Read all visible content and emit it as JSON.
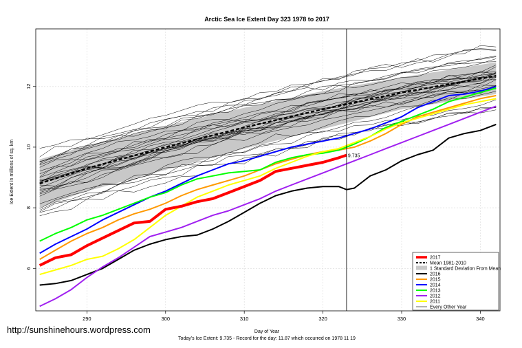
{
  "watermark": "http://sunshinehours.wordpress.com",
  "chart_data": {
    "type": "line",
    "title": "Arctic Sea Ice Extent Day 323 1978 to 2017",
    "xlabel": "Day of Year",
    "ylabel": "Ice Extent in millions of sq. km",
    "footer": "Today's Ice Extent: 9.735  - Record for the day: 11.87 which occurred on 1978 11 19",
    "xlim": [
      283.5,
      342.5
    ],
    "ylim": [
      4.6,
      13.9
    ],
    "x_ticks": [
      290,
      300,
      310,
      320,
      330,
      340
    ],
    "y_ticks": [
      6,
      8,
      10,
      12
    ],
    "grid": true,
    "current_day": 323,
    "current_value_label": "9.735",
    "current_value": 9.735,
    "legend_position": "bottom-right",
    "legend": [
      {
        "label": "2017",
        "color": "#ff0000",
        "style": "thick"
      },
      {
        "label": "Mean 1981-2010",
        "color": "#000000",
        "style": "dashed"
      },
      {
        "label": "1 Standard Deviation From Mean",
        "color": "#c8c8c8",
        "style": "band"
      },
      {
        "label": "2016",
        "color": "#000000",
        "style": "solid"
      },
      {
        "label": "2015",
        "color": "#ff9900",
        "style": "solid"
      },
      {
        "label": "2014",
        "color": "#0000ff",
        "style": "solid"
      },
      {
        "label": "2013",
        "color": "#00ff00",
        "style": "solid"
      },
      {
        "label": "2012",
        "color": "#a020f0",
        "style": "solid"
      },
      {
        "label": "2011",
        "color": "#ffff00",
        "style": "solid"
      },
      {
        "label": "Every Other Year",
        "color": "#000000",
        "style": "thin"
      }
    ],
    "mean": {
      "x": [
        284,
        290,
        300,
        310,
        320,
        330,
        342
      ],
      "y": [
        8.8,
        9.3,
        10.0,
        10.65,
        11.25,
        11.8,
        12.35
      ]
    },
    "std_band": {
      "x": [
        284,
        290,
        300,
        310,
        320,
        330,
        342
      ],
      "upper": [
        9.6,
        10.05,
        10.7,
        11.3,
        11.85,
        12.3,
        12.8
      ],
      "lower": [
        8.0,
        8.55,
        9.25,
        9.95,
        10.6,
        11.25,
        11.75
      ]
    },
    "series": [
      {
        "name": "2017",
        "color": "#ff0000",
        "width": 4,
        "x": [
          284,
          286,
          288,
          290,
          292,
          294,
          296,
          298,
          300,
          302,
          304,
          306,
          308,
          310,
          312,
          314,
          316,
          318,
          320,
          322,
          323
        ],
        "y": [
          6.1,
          6.35,
          6.45,
          6.75,
          7.0,
          7.25,
          7.5,
          7.55,
          7.95,
          8.05,
          8.2,
          8.3,
          8.5,
          8.7,
          8.9,
          9.2,
          9.3,
          9.4,
          9.5,
          9.65,
          9.735
        ]
      },
      {
        "name": "2016",
        "color": "#000000",
        "width": 2,
        "x": [
          284,
          286,
          288,
          290,
          292,
          294,
          296,
          298,
          300,
          302,
          304,
          306,
          308,
          310,
          312,
          314,
          316,
          318,
          320,
          322,
          323,
          324,
          326,
          328,
          330,
          332,
          334,
          336,
          338,
          340,
          342
        ],
        "y": [
          5.45,
          5.5,
          5.6,
          5.8,
          6.0,
          6.3,
          6.6,
          6.8,
          6.95,
          7.05,
          7.1,
          7.3,
          7.55,
          7.85,
          8.15,
          8.4,
          8.55,
          8.65,
          8.7,
          8.7,
          8.6,
          8.65,
          9.05,
          9.25,
          9.55,
          9.75,
          9.9,
          10.3,
          10.45,
          10.55,
          10.75
        ]
      },
      {
        "name": "2015",
        "color": "#ff9900",
        "width": 2,
        "x": [
          284,
          286,
          288,
          290,
          292,
          294,
          296,
          298,
          300,
          302,
          304,
          306,
          308,
          310,
          312,
          314,
          316,
          318,
          320,
          322,
          324,
          326,
          328,
          330,
          332,
          334,
          336,
          338,
          340,
          342
        ],
        "y": [
          6.3,
          6.6,
          6.9,
          7.15,
          7.35,
          7.6,
          7.8,
          7.95,
          8.15,
          8.4,
          8.6,
          8.75,
          8.9,
          9.05,
          9.25,
          9.45,
          9.6,
          9.75,
          9.85,
          9.9,
          10.0,
          10.2,
          10.45,
          10.75,
          11.0,
          11.15,
          11.3,
          11.45,
          11.6,
          11.7
        ]
      },
      {
        "name": "2014",
        "color": "#0000ff",
        "width": 2,
        "x": [
          284,
          286,
          288,
          290,
          292,
          294,
          296,
          298,
          300,
          302,
          304,
          306,
          308,
          310,
          312,
          314,
          316,
          318,
          320,
          322,
          324,
          326,
          328,
          330,
          332,
          334,
          336,
          338,
          340,
          342
        ],
        "y": [
          6.5,
          6.8,
          7.05,
          7.3,
          7.6,
          7.85,
          8.1,
          8.35,
          8.55,
          8.8,
          9.05,
          9.25,
          9.45,
          9.55,
          9.7,
          9.85,
          10.0,
          10.1,
          10.2,
          10.3,
          10.45,
          10.6,
          10.8,
          11.0,
          11.3,
          11.5,
          11.7,
          11.75,
          11.85,
          12.0
        ]
      },
      {
        "name": "2013",
        "color": "#00ff00",
        "width": 2,
        "x": [
          284,
          286,
          288,
          290,
          292,
          294,
          296,
          298,
          300,
          302,
          304,
          306,
          308,
          310,
          312,
          314,
          316,
          318,
          320,
          322,
          324,
          326,
          328,
          330,
          332,
          334,
          336,
          338,
          340,
          342
        ],
        "y": [
          6.9,
          7.15,
          7.35,
          7.6,
          7.75,
          7.95,
          8.15,
          8.35,
          8.5,
          8.75,
          8.95,
          9.05,
          9.15,
          9.2,
          9.25,
          9.5,
          9.65,
          9.75,
          9.8,
          9.9,
          10.1,
          10.35,
          10.65,
          10.85,
          11.05,
          11.25,
          11.5,
          11.65,
          11.8,
          11.95
        ]
      },
      {
        "name": "2012",
        "color": "#a020f0",
        "width": 2,
        "x": [
          284,
          286,
          288,
          290,
          292,
          294,
          296,
          298,
          300,
          302,
          304,
          306,
          308,
          310,
          312,
          314,
          316,
          318,
          320,
          322,
          324,
          326,
          328,
          330,
          332,
          334,
          336,
          338,
          340,
          342
        ],
        "y": [
          4.75,
          5.0,
          5.3,
          5.7,
          6.05,
          6.35,
          6.7,
          7.05,
          7.2,
          7.35,
          7.55,
          7.75,
          7.9,
          8.1,
          8.3,
          8.55,
          8.75,
          8.95,
          9.15,
          9.35,
          9.55,
          9.75,
          9.95,
          10.15,
          10.35,
          10.55,
          10.75,
          10.95,
          11.15,
          11.35
        ]
      },
      {
        "name": "2011",
        "color": "#ffff00",
        "width": 2,
        "x": [
          284,
          286,
          288,
          290,
          292,
          294,
          296,
          298,
          300,
          302,
          304,
          306,
          308,
          310,
          312,
          314,
          316,
          318,
          320,
          322,
          324,
          326,
          328,
          330,
          332,
          334,
          336,
          338,
          340,
          342
        ],
        "y": [
          5.8,
          5.95,
          6.1,
          6.3,
          6.4,
          6.65,
          6.95,
          7.35,
          7.75,
          8.05,
          8.35,
          8.55,
          8.75,
          8.9,
          9.05,
          9.3,
          9.5,
          9.7,
          9.85,
          9.95,
          10.15,
          10.35,
          10.6,
          10.8,
          10.95,
          11.1,
          11.25,
          11.4,
          11.5,
          11.6
        ]
      }
    ]
  }
}
